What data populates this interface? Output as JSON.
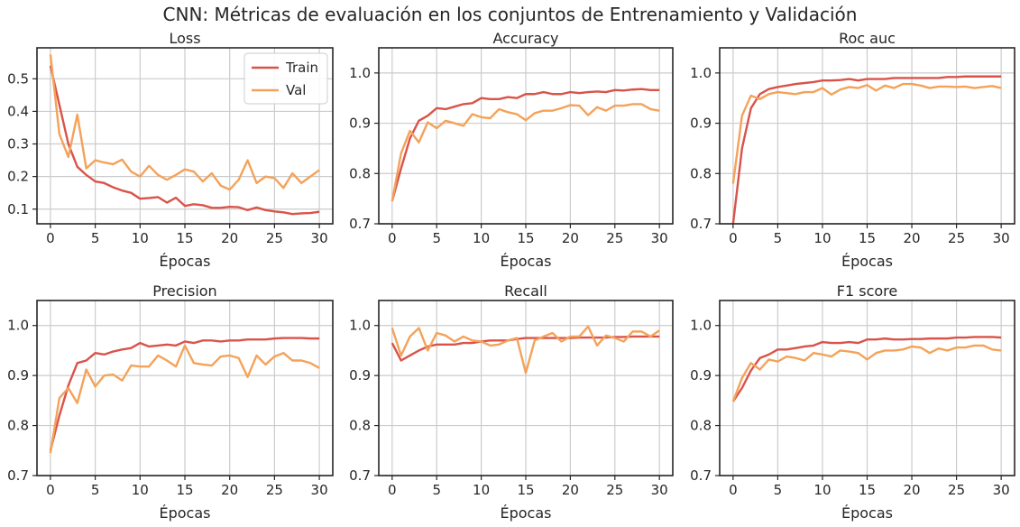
{
  "figure_title": "CNN: Métricas de evaluación en los conjuntos de Entrenamiento y Validación",
  "colors": {
    "train": "#d9534a",
    "val": "#f4a259",
    "grid": "#cccccc",
    "axis": "#262626"
  },
  "chart_data": [
    {
      "type": "line",
      "title": "Loss",
      "xlabel": "Épocas",
      "ylabel": "",
      "xlim": [
        -1.5,
        31.5
      ],
      "ylim": [
        0.055,
        0.595
      ],
      "xticks": [
        0,
        5,
        10,
        15,
        20,
        25,
        30
      ],
      "yticks": [
        0.1,
        0.2,
        0.3,
        0.4,
        0.5
      ],
      "ytick_labels": [
        "0.1",
        "0.2",
        "0.3",
        "0.4",
        "0.5"
      ],
      "grid": true,
      "legend": "top-right",
      "x": [
        0,
        1,
        2,
        3,
        4,
        5,
        6,
        7,
        8,
        9,
        10,
        11,
        12,
        13,
        14,
        15,
        16,
        17,
        18,
        19,
        20,
        21,
        22,
        23,
        24,
        25,
        26,
        27,
        28,
        29,
        30
      ],
      "series": [
        {
          "name": "Train",
          "color": "#d9534a",
          "values": [
            0.54,
            0.42,
            0.3,
            0.23,
            0.205,
            0.185,
            0.18,
            0.167,
            0.157,
            0.15,
            0.132,
            0.134,
            0.137,
            0.12,
            0.135,
            0.11,
            0.115,
            0.112,
            0.104,
            0.104,
            0.107,
            0.106,
            0.097,
            0.105,
            0.097,
            0.093,
            0.09,
            0.085,
            0.087,
            0.088,
            0.092
          ]
        },
        {
          "name": "Val",
          "color": "#f4a259",
          "values": [
            0.575,
            0.33,
            0.26,
            0.39,
            0.225,
            0.25,
            0.243,
            0.238,
            0.252,
            0.215,
            0.2,
            0.233,
            0.205,
            0.19,
            0.205,
            0.222,
            0.215,
            0.185,
            0.21,
            0.172,
            0.16,
            0.19,
            0.25,
            0.18,
            0.2,
            0.195,
            0.165,
            0.21,
            0.18,
            0.2,
            0.22
          ]
        }
      ]
    },
    {
      "type": "line",
      "title": "Accuracy",
      "xlabel": "Épocas",
      "ylabel": "",
      "xlim": [
        -1.5,
        31.5
      ],
      "ylim": [
        0.7,
        1.05
      ],
      "xticks": [
        0,
        5,
        10,
        15,
        20,
        25,
        30
      ],
      "yticks": [
        0.7,
        0.8,
        0.9,
        1.0
      ],
      "ytick_labels": [
        "0.7",
        "0.8",
        "0.9",
        "1.0"
      ],
      "grid": true,
      "x": [
        0,
        1,
        2,
        3,
        4,
        5,
        6,
        7,
        8,
        9,
        10,
        11,
        12,
        13,
        14,
        15,
        16,
        17,
        18,
        19,
        20,
        21,
        22,
        23,
        24,
        25,
        26,
        27,
        28,
        29,
        30
      ],
      "series": [
        {
          "name": "Train",
          "color": "#d9534a",
          "values": [
            0.745,
            0.81,
            0.87,
            0.905,
            0.915,
            0.93,
            0.928,
            0.933,
            0.938,
            0.94,
            0.95,
            0.948,
            0.948,
            0.952,
            0.95,
            0.958,
            0.958,
            0.962,
            0.958,
            0.958,
            0.962,
            0.96,
            0.962,
            0.963,
            0.962,
            0.966,
            0.965,
            0.967,
            0.968,
            0.966,
            0.966
          ]
        },
        {
          "name": "Val",
          "color": "#f4a259",
          "values": [
            0.745,
            0.84,
            0.885,
            0.862,
            0.902,
            0.89,
            0.905,
            0.9,
            0.895,
            0.918,
            0.912,
            0.91,
            0.928,
            0.922,
            0.918,
            0.906,
            0.92,
            0.925,
            0.925,
            0.93,
            0.936,
            0.935,
            0.916,
            0.932,
            0.925,
            0.935,
            0.935,
            0.938,
            0.938,
            0.928,
            0.925
          ]
        }
      ]
    },
    {
      "type": "line",
      "title": "Roc auc",
      "xlabel": "Épocas",
      "ylabel": "",
      "xlim": [
        -1.5,
        31.5
      ],
      "ylim": [
        0.7,
        1.05
      ],
      "xticks": [
        0,
        5,
        10,
        15,
        20,
        25,
        30
      ],
      "yticks": [
        0.7,
        0.8,
        0.9,
        1.0
      ],
      "ytick_labels": [
        "0.7",
        "0.8",
        "0.9",
        "1.0"
      ],
      "grid": true,
      "x": [
        0,
        1,
        2,
        3,
        4,
        5,
        6,
        7,
        8,
        9,
        10,
        11,
        12,
        13,
        14,
        15,
        16,
        17,
        18,
        19,
        20,
        21,
        22,
        23,
        24,
        25,
        26,
        27,
        28,
        29,
        30
      ],
      "series": [
        {
          "name": "Train",
          "color": "#d9534a",
          "values": [
            0.7,
            0.85,
            0.93,
            0.958,
            0.968,
            0.972,
            0.975,
            0.978,
            0.98,
            0.982,
            0.985,
            0.985,
            0.986,
            0.988,
            0.985,
            0.988,
            0.988,
            0.988,
            0.99,
            0.99,
            0.99,
            0.99,
            0.99,
            0.99,
            0.992,
            0.992,
            0.993,
            0.993,
            0.993,
            0.993,
            0.993
          ]
        },
        {
          "name": "Val",
          "color": "#f4a259",
          "values": [
            0.78,
            0.915,
            0.955,
            0.948,
            0.958,
            0.962,
            0.96,
            0.958,
            0.962,
            0.962,
            0.97,
            0.957,
            0.967,
            0.972,
            0.97,
            0.976,
            0.965,
            0.975,
            0.97,
            0.978,
            0.978,
            0.975,
            0.97,
            0.973,
            0.973,
            0.972,
            0.973,
            0.97,
            0.972,
            0.974,
            0.97
          ]
        }
      ]
    },
    {
      "type": "line",
      "title": "Precision",
      "xlabel": "Épocas",
      "ylabel": "",
      "xlim": [
        -1.5,
        31.5
      ],
      "ylim": [
        0.7,
        1.05
      ],
      "xticks": [
        0,
        5,
        10,
        15,
        20,
        25,
        30
      ],
      "yticks": [
        0.7,
        0.8,
        0.9,
        1.0
      ],
      "ytick_labels": [
        "0.7",
        "0.8",
        "0.9",
        "1.0"
      ],
      "grid": true,
      "x": [
        0,
        1,
        2,
        3,
        4,
        5,
        6,
        7,
        8,
        9,
        10,
        11,
        12,
        13,
        14,
        15,
        16,
        17,
        18,
        19,
        20,
        21,
        22,
        23,
        24,
        25,
        26,
        27,
        28,
        29,
        30
      ],
      "series": [
        {
          "name": "Train",
          "color": "#d9534a",
          "values": [
            0.75,
            0.82,
            0.88,
            0.925,
            0.93,
            0.945,
            0.942,
            0.948,
            0.952,
            0.955,
            0.965,
            0.958,
            0.96,
            0.962,
            0.96,
            0.968,
            0.965,
            0.97,
            0.97,
            0.968,
            0.97,
            0.97,
            0.972,
            0.972,
            0.972,
            0.974,
            0.975,
            0.975,
            0.975,
            0.974,
            0.974
          ]
        },
        {
          "name": "Val",
          "color": "#f4a259",
          "values": [
            0.745,
            0.855,
            0.875,
            0.845,
            0.912,
            0.878,
            0.9,
            0.902,
            0.89,
            0.92,
            0.918,
            0.918,
            0.94,
            0.93,
            0.918,
            0.96,
            0.925,
            0.922,
            0.92,
            0.938,
            0.94,
            0.935,
            0.897,
            0.94,
            0.922,
            0.938,
            0.945,
            0.93,
            0.93,
            0.925,
            0.915
          ]
        }
      ]
    },
    {
      "type": "line",
      "title": "Recall",
      "xlabel": "Épocas",
      "ylabel": "",
      "xlim": [
        -1.5,
        31.5
      ],
      "ylim": [
        0.7,
        1.05
      ],
      "xticks": [
        0,
        5,
        10,
        15,
        20,
        25,
        30
      ],
      "yticks": [
        0.7,
        0.8,
        0.9,
        1.0
      ],
      "ytick_labels": [
        "0.7",
        "0.8",
        "0.9",
        "1.0"
      ],
      "grid": true,
      "x": [
        0,
        1,
        2,
        3,
        4,
        5,
        6,
        7,
        8,
        9,
        10,
        11,
        12,
        13,
        14,
        15,
        16,
        17,
        18,
        19,
        20,
        21,
        22,
        23,
        24,
        25,
        26,
        27,
        28,
        29,
        30
      ],
      "series": [
        {
          "name": "Train",
          "color": "#d9534a",
          "values": [
            0.965,
            0.93,
            0.94,
            0.95,
            0.958,
            0.962,
            0.962,
            0.962,
            0.965,
            0.965,
            0.968,
            0.97,
            0.97,
            0.97,
            0.973,
            0.975,
            0.975,
            0.975,
            0.975,
            0.975,
            0.975,
            0.976,
            0.976,
            0.976,
            0.976,
            0.977,
            0.977,
            0.978,
            0.978,
            0.978,
            0.978
          ]
        },
        {
          "name": "Val",
          "color": "#f4a259",
          "values": [
            0.995,
            0.94,
            0.978,
            0.995,
            0.95,
            0.985,
            0.98,
            0.968,
            0.978,
            0.97,
            0.968,
            0.96,
            0.962,
            0.97,
            0.975,
            0.905,
            0.97,
            0.978,
            0.985,
            0.968,
            0.978,
            0.978,
            0.998,
            0.96,
            0.98,
            0.975,
            0.968,
            0.988,
            0.988,
            0.978,
            0.99
          ]
        }
      ]
    },
    {
      "type": "line",
      "title": "F1 score",
      "xlabel": "Épocas",
      "ylabel": "",
      "xlim": [
        -1.5,
        31.5
      ],
      "ylim": [
        0.7,
        1.05
      ],
      "xticks": [
        0,
        5,
        10,
        15,
        20,
        25,
        30
      ],
      "yticks": [
        0.7,
        0.8,
        0.9,
        1.0
      ],
      "ytick_labels": [
        "0.7",
        "0.8",
        "0.9",
        "1.0"
      ],
      "grid": true,
      "x": [
        0,
        1,
        2,
        3,
        4,
        5,
        6,
        7,
        8,
        9,
        10,
        11,
        12,
        13,
        14,
        15,
        16,
        17,
        18,
        19,
        20,
        21,
        22,
        23,
        24,
        25,
        26,
        27,
        28,
        29,
        30
      ],
      "series": [
        {
          "name": "Train",
          "color": "#d9534a",
          "values": [
            0.848,
            0.875,
            0.91,
            0.935,
            0.942,
            0.952,
            0.952,
            0.955,
            0.958,
            0.96,
            0.967,
            0.965,
            0.965,
            0.967,
            0.965,
            0.972,
            0.972,
            0.974,
            0.972,
            0.972,
            0.973,
            0.973,
            0.974,
            0.974,
            0.974,
            0.976,
            0.976,
            0.977,
            0.977,
            0.977,
            0.976
          ]
        },
        {
          "name": "Val",
          "color": "#f4a259",
          "values": [
            0.848,
            0.895,
            0.925,
            0.912,
            0.932,
            0.928,
            0.938,
            0.935,
            0.93,
            0.945,
            0.942,
            0.938,
            0.95,
            0.948,
            0.945,
            0.932,
            0.945,
            0.95,
            0.95,
            0.952,
            0.958,
            0.956,
            0.945,
            0.954,
            0.95,
            0.956,
            0.956,
            0.96,
            0.96,
            0.952,
            0.95
          ]
        }
      ]
    }
  ]
}
